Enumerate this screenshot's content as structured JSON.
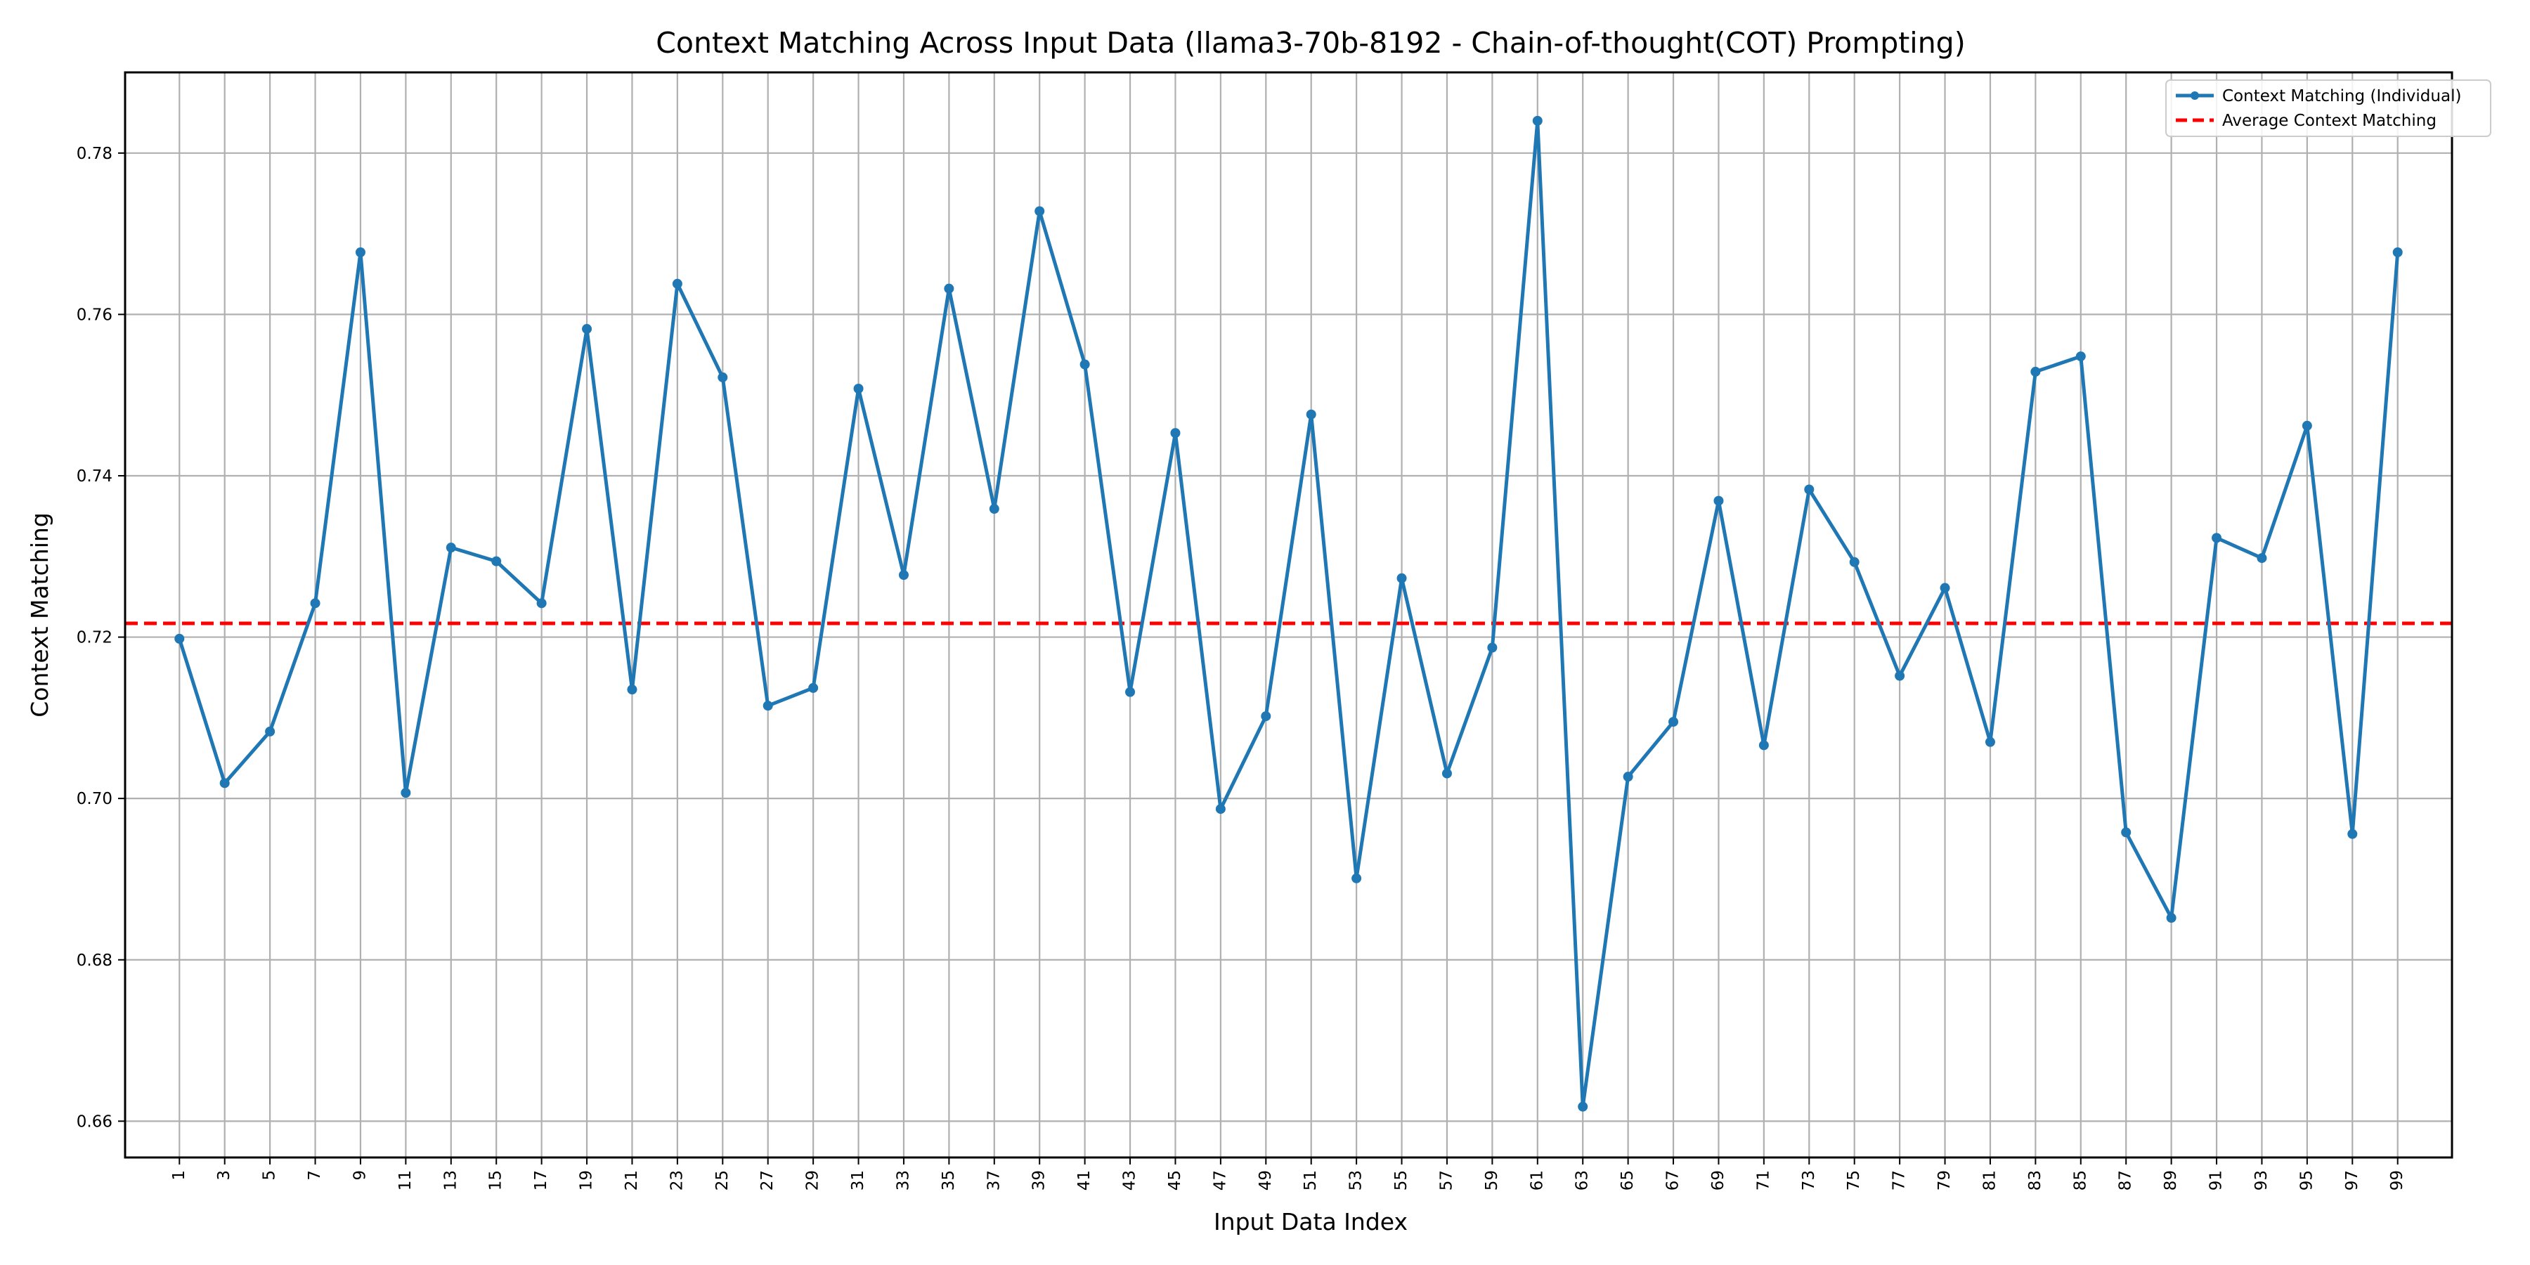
{
  "chart_data": {
    "type": "line",
    "title": "Context Matching Across Input Data (llama3-70b-8192 - Chain-of-thought(COT) Prompting)",
    "xlabel": "Input Data Index",
    "ylabel": "Context Matching",
    "xlim": [
      -1.4,
      101.4
    ],
    "ylim": [
      0.6555,
      0.79
    ],
    "grid": true,
    "legend_position": "top-right",
    "x_ticks": [
      1,
      3,
      5,
      7,
      9,
      11,
      13,
      15,
      17,
      19,
      21,
      23,
      25,
      27,
      29,
      31,
      33,
      35,
      37,
      39,
      41,
      43,
      45,
      47,
      49,
      51,
      53,
      55,
      57,
      59,
      61,
      63,
      65,
      67,
      69,
      71,
      73,
      75,
      77,
      79,
      81,
      83,
      85,
      87,
      89,
      91,
      93,
      95,
      97,
      99
    ],
    "y_ticks": [
      0.66,
      0.68,
      0.7,
      0.72,
      0.74,
      0.76,
      0.78
    ],
    "y_tick_labels": [
      "0.66",
      "0.68",
      "0.70",
      "0.72",
      "0.74",
      "0.76",
      "0.78"
    ],
    "series": [
      {
        "name": "Context Matching (Individual)",
        "color": "#1f77b4",
        "style": "solid-with-markers",
        "x": [
          1,
          3,
          5,
          7,
          9,
          11,
          13,
          15,
          17,
          19,
          21,
          23,
          25,
          27,
          29,
          31,
          33,
          35,
          37,
          39,
          41,
          43,
          45,
          47,
          49,
          51,
          53,
          55,
          57,
          59,
          61,
          63,
          65,
          67,
          69,
          71,
          73,
          75,
          77,
          79,
          81,
          83,
          85,
          87,
          89,
          91,
          93,
          95,
          97,
          99
        ],
        "y": [
          0.7198,
          0.7019,
          0.7083,
          0.7242,
          0.7677,
          0.7007,
          0.7311,
          0.7294,
          0.7242,
          0.7582,
          0.7135,
          0.7638,
          0.7522,
          0.7115,
          0.7137,
          0.7508,
          0.7277,
          0.7632,
          0.7359,
          0.7728,
          0.7538,
          0.7132,
          0.7453,
          0.6987,
          0.7102,
          0.7476,
          0.6901,
          0.7273,
          0.7031,
          0.7187,
          0.784,
          0.6618,
          0.7027,
          0.7095,
          0.7369,
          0.7066,
          0.7383,
          0.7293,
          0.7152,
          0.7261,
          0.707,
          0.7529,
          0.7548,
          0.6958,
          0.6852,
          0.7323,
          0.7298,
          0.7462,
          0.6956,
          0.7677
        ]
      },
      {
        "name": "Average Context Matching",
        "color": "#ff0000",
        "style": "dashed",
        "value": 0.7217
      }
    ]
  }
}
